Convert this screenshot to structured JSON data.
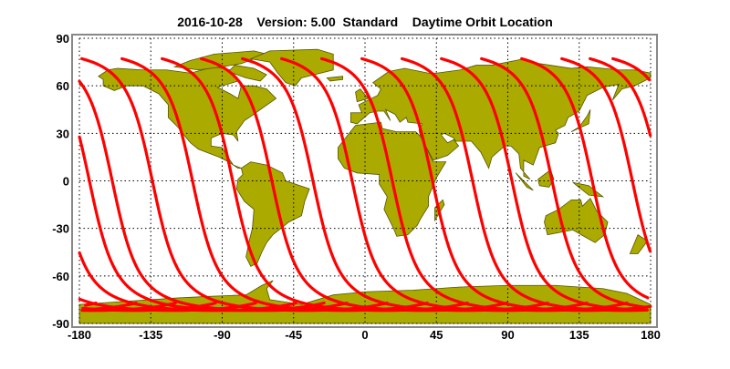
{
  "title": "2016-10-28    Version: 5.00  Standard    Daytime Orbit Location",
  "map": {
    "projection": "equirectangular",
    "lon_range": [
      -180,
      180
    ],
    "lat_range": [
      -90,
      90
    ],
    "x_ticks": [
      "-180",
      "-135",
      "-90",
      "-45",
      "0",
      "45",
      "90",
      "135",
      "180"
    ],
    "x_tick_values": [
      -180,
      -135,
      -90,
      -45,
      0,
      45,
      90,
      135,
      180
    ],
    "y_ticks": [
      "90",
      "60",
      "30",
      "0",
      "-30",
      "-60",
      "-90"
    ],
    "y_tick_values": [
      90,
      60,
      30,
      0,
      -30,
      -60,
      -90
    ],
    "grid": "dotted",
    "colors": {
      "land": "#aaaa00",
      "coast": "#555500",
      "track": "#ff0000",
      "frame": "#888888",
      "background": "#ffffff"
    }
  },
  "orbit_tracks": {
    "direction": "ascending",
    "equator_crossing_longitudes": [
      -173.7,
      -159.3,
      -134.0,
      -108.7,
      -83.4,
      -58.7,
      -32.8,
      -8.1,
      17.2,
      42.5,
      67.8,
      92.6,
      117.9,
      143.2,
      168.5
    ]
  }
}
